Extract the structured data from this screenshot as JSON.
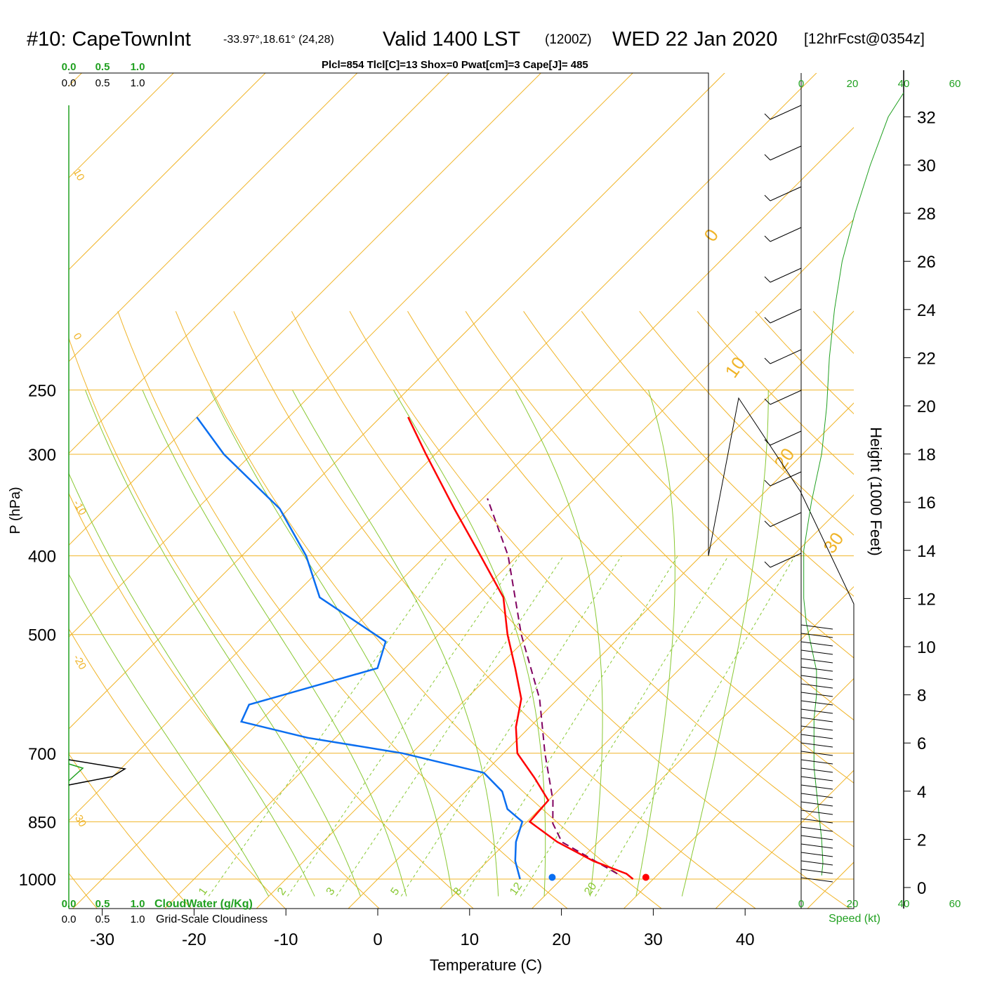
{
  "header": {
    "title": "#10: CapeTownInt",
    "coords": "-33.97°,18.61° (24,28)",
    "valid": "Valid 1400 LST",
    "utc": "(1200Z)",
    "date": "WED 22 Jan 2020",
    "forecast": "[12hrFcst@0354z]",
    "params": "Plcl=854 Tlcl[C]=13 Shox=0 Pwat[cm]=3 Cape[J]= 485"
  },
  "colors": {
    "temperature": "#ff0000",
    "dewpoint": "#0a6ef0",
    "parcel": "#800060",
    "isobar_isotherm": "#f0b428",
    "moist_adiabat": "#88c832",
    "mixing_ratio": "#88c832",
    "green_text": "#20a020",
    "params_text": "#a00060"
  },
  "chart_data": {
    "type": "skew-t",
    "xlabel": "Temperature (C)",
    "ylabel": "P (hPa)",
    "right_ylabel": "Height (1000 Feet)",
    "temperature_ticks": [
      -30,
      -20,
      -10,
      0,
      10,
      20,
      30,
      40
    ],
    "pressure_ticks": [
      250,
      300,
      400,
      500,
      700,
      850,
      1000
    ],
    "height_ticks_kft": [
      0,
      2,
      4,
      6,
      8,
      10,
      12,
      14,
      16,
      18,
      20,
      22,
      24,
      26,
      28,
      30,
      32
    ],
    "isotherm_labels": [
      "-30",
      "-20",
      "-10",
      "0",
      "10",
      "0",
      "10",
      "20",
      "30"
    ],
    "mixing_ratio_labels": [
      "1",
      "2",
      "3",
      "5",
      "8",
      "12",
      "20"
    ],
    "cloud_scale_green": [
      "0.0",
      "0.5",
      "1.0"
    ],
    "cloud_scale_black": [
      "0.0",
      "0.5",
      "1.0"
    ],
    "cloudwater_label": "CloudWater (g/Kg)",
    "cloudiness_label": "Grid-Scale Cloudiness",
    "speed_ticks": [
      "0",
      "20",
      "40",
      "60"
    ],
    "speed_label": "Speed (kt)",
    "temperature_series": {
      "name": "Temperature",
      "points": [
        {
          "p": 1000,
          "t": 27.8
        },
        {
          "p": 985,
          "t": 26.5
        },
        {
          "p": 950,
          "t": 21.5
        },
        {
          "p": 900,
          "t": 15.5
        },
        {
          "p": 850,
          "t": 10.3
        },
        {
          "p": 800,
          "t": 10.0
        },
        {
          "p": 750,
          "t": 6.0
        },
        {
          "p": 700,
          "t": 1.5
        },
        {
          "p": 650,
          "t": -1.5
        },
        {
          "p": 600,
          "t": -4.0
        },
        {
          "p": 550,
          "t": -8.0
        },
        {
          "p": 500,
          "t": -12.5
        },
        {
          "p": 450,
          "t": -17.0
        },
        {
          "p": 400,
          "t": -24.0
        },
        {
          "p": 350,
          "t": -32.0
        },
        {
          "p": 300,
          "t": -41.0
        },
        {
          "p": 270,
          "t": -47.0
        }
      ]
    },
    "dewpoint_series": {
      "name": "Dewpoint",
      "points": [
        {
          "p": 1000,
          "t": 15.5
        },
        {
          "p": 950,
          "t": 13.0
        },
        {
          "p": 900,
          "t": 11.0
        },
        {
          "p": 850,
          "t": 9.5
        },
        {
          "p": 820,
          "t": 6.5
        },
        {
          "p": 780,
          "t": 4.0
        },
        {
          "p": 740,
          "t": 0.0
        },
        {
          "p": 700,
          "t": -11.0
        },
        {
          "p": 670,
          "t": -23.0
        },
        {
          "p": 640,
          "t": -32.0
        },
        {
          "p": 610,
          "t": -33.0
        },
        {
          "p": 550,
          "t": -23.0
        },
        {
          "p": 510,
          "t": -25.0
        },
        {
          "p": 450,
          "t": -37.0
        },
        {
          "p": 400,
          "t": -43.0
        },
        {
          "p": 350,
          "t": -51.0
        },
        {
          "p": 300,
          "t": -63.0
        },
        {
          "p": 270,
          "t": -70.0
        }
      ]
    },
    "parcel_series": {
      "name": "Parcel",
      "points": [
        {
          "p": 985,
          "t": 25.5
        },
        {
          "p": 900,
          "t": 16.0
        },
        {
          "p": 854,
          "t": 13.0
        },
        {
          "p": 800,
          "t": 10.5
        },
        {
          "p": 700,
          "t": 4.5
        },
        {
          "p": 600,
          "t": -2.0
        },
        {
          "p": 500,
          "t": -11.0
        },
        {
          "p": 400,
          "t": -21.0
        },
        {
          "p": 340,
          "t": -29.5
        }
      ]
    },
    "surface_temperature": 29.0,
    "surface_dewpoint": 18.8,
    "wind_speed_profile": [
      {
        "kft": 0.5,
        "kt": 8
      },
      {
        "kft": 1.0,
        "kt": 8.5
      },
      {
        "kft": 2.0,
        "kt": 8
      },
      {
        "kft": 3.0,
        "kt": 7
      },
      {
        "kft": 4.0,
        "kt": 6
      },
      {
        "kft": 5.0,
        "kt": 5
      },
      {
        "kft": 6.0,
        "kt": 5
      },
      {
        "kft": 7.0,
        "kt": 5
      },
      {
        "kft": 8.0,
        "kt": 6
      },
      {
        "kft": 9.0,
        "kt": 6
      },
      {
        "kft": 10.0,
        "kt": 4
      },
      {
        "kft": 11.0,
        "kt": 2
      },
      {
        "kft": 12.0,
        "kt": 1
      },
      {
        "kft": 14.0,
        "kt": 1
      },
      {
        "kft": 16.0,
        "kt": 4
      },
      {
        "kft": 18.0,
        "kt": 8
      },
      {
        "kft": 20.0,
        "kt": 10
      },
      {
        "kft": 22.0,
        "kt": 11
      },
      {
        "kft": 24.0,
        "kt": 13
      },
      {
        "kft": 26.0,
        "kt": 16
      },
      {
        "kft": 28.0,
        "kt": 21
      },
      {
        "kft": 30.0,
        "kt": 27
      },
      {
        "kft": 32.0,
        "kt": 34
      },
      {
        "kft": 33.0,
        "kt": 40
      }
    ]
  }
}
